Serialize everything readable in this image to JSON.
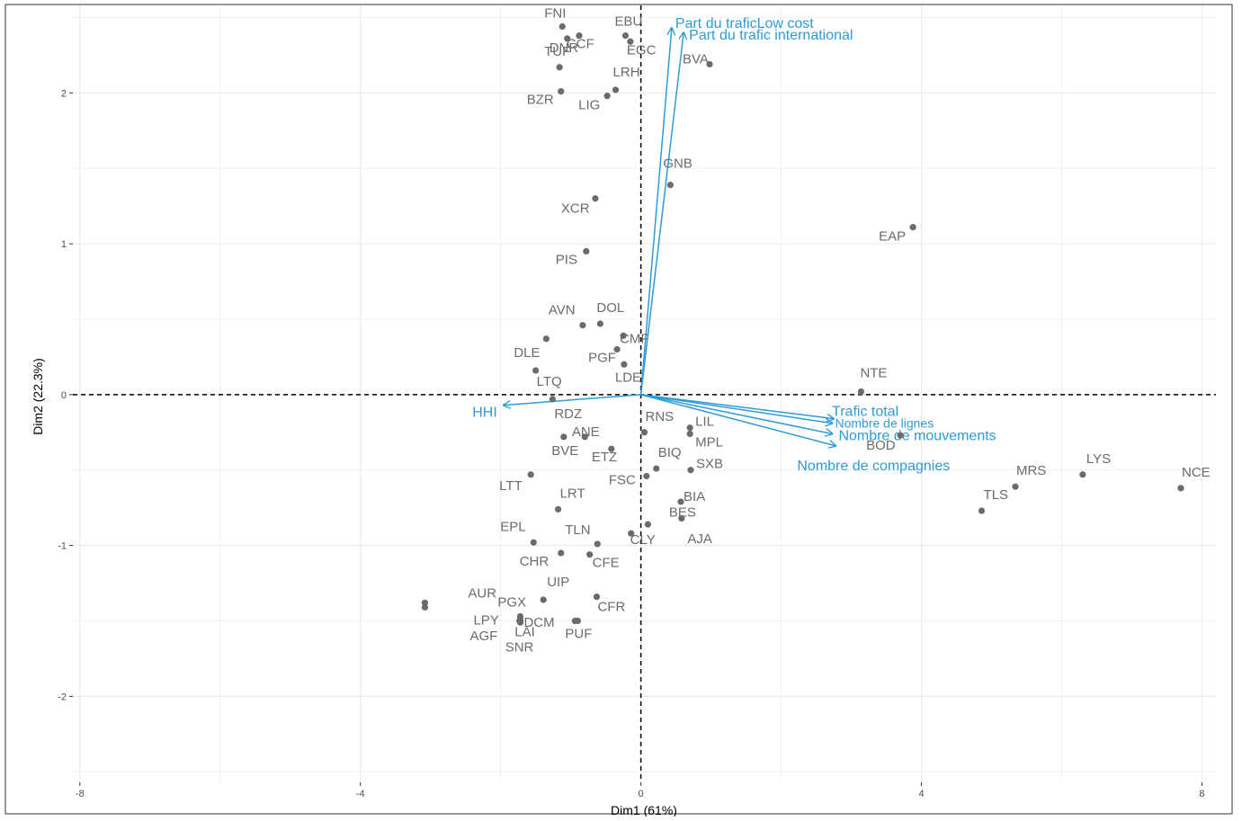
{
  "chart_data": {
    "type": "scatter",
    "title": "",
    "xlabel": "Dim1 (61%)",
    "ylabel": "Dim2 (22.3%)",
    "xlim": [
      -8.1,
      8.2
    ],
    "ylim": [
      -2.57,
      2.58
    ],
    "x_ticks": [
      -8,
      -4,
      0,
      4,
      8
    ],
    "x_tick_labels": [
      "-8",
      "-4",
      "0",
      "4",
      "8"
    ],
    "y_ticks": [
      -2,
      -1,
      0,
      1,
      2
    ],
    "y_tick_labels": [
      "-2",
      "-1",
      "0",
      "1",
      "2"
    ],
    "grid": true,
    "reference_lines": [
      "x=0",
      "y=0"
    ],
    "colors": {
      "points": "#6b6b6b",
      "point_labels": "#6b6b6b",
      "arrows": "#2f9ad6",
      "grid": "#ebebeb",
      "frame": "#333333"
    },
    "points": [
      {
        "label": "FNI",
        "x": -1.12,
        "y": 2.44
      },
      {
        "label": "EBU",
        "x": -0.22,
        "y": 2.38
      },
      {
        "label": "CCF",
        "x": -0.88,
        "y": 2.38
      },
      {
        "label": "DNR",
        "x": -1.05,
        "y": 2.36
      },
      {
        "label": "EGC",
        "x": -0.15,
        "y": 2.34
      },
      {
        "label": "BVA",
        "x": 0.98,
        "y": 2.19
      },
      {
        "label": "TUF",
        "x": -1.16,
        "y": 2.17
      },
      {
        "label": "LRH",
        "x": -0.36,
        "y": 2.02
      },
      {
        "label": "BZR",
        "x": -1.14,
        "y": 2.01
      },
      {
        "label": "LIG",
        "x": -0.48,
        "y": 1.98
      },
      {
        "label": "GNB",
        "x": 0.42,
        "y": 1.39
      },
      {
        "label": "XCR",
        "x": -0.65,
        "y": 1.3
      },
      {
        "label": "EAP",
        "x": 3.88,
        "y": 1.11
      },
      {
        "label": "PIS",
        "x": -0.78,
        "y": 0.95
      },
      {
        "label": "AVN",
        "x": -0.83,
        "y": 0.46
      },
      {
        "label": "DOL",
        "x": -0.58,
        "y": 0.47
      },
      {
        "label": "CMF",
        "x": -0.25,
        "y": 0.39
      },
      {
        "label": "DLE",
        "x": -1.35,
        "y": 0.37
      },
      {
        "label": "PGF",
        "x": -0.34,
        "y": 0.3
      },
      {
        "label": "LDE",
        "x": -0.24,
        "y": 0.2
      },
      {
        "label": "LTQ",
        "x": -1.5,
        "y": 0.16
      },
      {
        "label": "NTE",
        "x": 3.14,
        "y": 0.02
      },
      {
        "label": "RDZ",
        "x": -1.26,
        "y": -0.03
      },
      {
        "label": "RNS",
        "x": 0.05,
        "y": -0.25
      },
      {
        "label": "LIL",
        "x": 0.7,
        "y": -0.22
      },
      {
        "label": "MPL",
        "x": 0.7,
        "y": -0.26
      },
      {
        "label": "BOD",
        "x": 3.7,
        "y": -0.27
      },
      {
        "label": "ANE",
        "x": -1.1,
        "y": -0.28
      },
      {
        "label": "BVE",
        "x": -0.8,
        "y": -0.28
      },
      {
        "label": "ETZ",
        "x": -0.42,
        "y": -0.36
      },
      {
        "label": "BIQ",
        "x": 0.22,
        "y": -0.49
      },
      {
        "label": "SXB",
        "x": 0.71,
        "y": -0.5
      },
      {
        "label": "LTT",
        "x": -1.57,
        "y": -0.53
      },
      {
        "label": "FSC",
        "x": 0.08,
        "y": -0.54
      },
      {
        "label": "LYS",
        "x": 6.3,
        "y": -0.53
      },
      {
        "label": "MRS",
        "x": 5.34,
        "y": -0.61
      },
      {
        "label": "NCE",
        "x": 7.7,
        "y": -0.62
      },
      {
        "label": "BIA",
        "x": 0.57,
        "y": -0.71
      },
      {
        "label": "LRT",
        "x": -1.18,
        "y": -0.76
      },
      {
        "label": "TLS",
        "x": 4.86,
        "y": -0.77
      },
      {
        "label": "BES",
        "x": 0.58,
        "y": -0.82
      },
      {
        "label": "AJA",
        "x": 0.1,
        "y": -0.86
      },
      {
        "label": "CLY",
        "x": -0.14,
        "y": -0.92
      },
      {
        "label": "TLN",
        "x": -0.62,
        "y": -0.99
      },
      {
        "label": "EPL",
        "x": -1.53,
        "y": -0.98
      },
      {
        "label": "CHR",
        "x": -1.14,
        "y": -1.05
      },
      {
        "label": "CFE",
        "x": -0.73,
        "y": -1.06
      },
      {
        "label": "UIP",
        "x": -1.39,
        "y": -1.36
      },
      {
        "label": "CFR",
        "x": -0.63,
        "y": -1.34
      },
      {
        "label": "AUR",
        "x": -3.08,
        "y": -1.38
      },
      {
        "label": "PGX",
        "x": -3.08,
        "y": -1.41
      },
      {
        "label": "LPY",
        "x": -1.72,
        "y": -1.47
      },
      {
        "label": "DCM",
        "x": -1.72,
        "y": -1.49
      },
      {
        "label": "AGF",
        "x": -1.72,
        "y": -1.51
      },
      {
        "label": "LAI",
        "x": -0.94,
        "y": -1.5
      },
      {
        "label": "PUF",
        "x": -0.9,
        "y": -1.5
      },
      {
        "label": "SNR",
        "x": -1.73,
        "y": -1.5
      }
    ],
    "variables": [
      {
        "label": "Part du traficLow cost",
        "x": 0.44,
        "y": 2.43
      },
      {
        "label": "Part du trafic international",
        "x": 0.61,
        "y": 2.4
      },
      {
        "label": "HHI",
        "x": -1.96,
        "y": -0.07
      },
      {
        "label": "Trafic total",
        "x": 2.75,
        "y": -0.16
      },
      {
        "label": "Nombre de lignes",
        "x": 2.73,
        "y": -0.19
      },
      {
        "label": "Nombre de mouvements",
        "x": 2.73,
        "y": -0.26
      },
      {
        "label": "Nombre de compagnies",
        "x": 2.78,
        "y": -0.34
      }
    ]
  }
}
